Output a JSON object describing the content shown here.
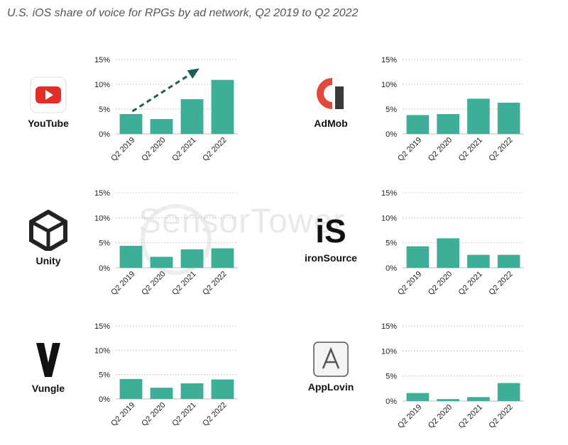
{
  "subtitle": "U.S. iOS share of voice for RPGs by ad network, Q2 2019 to Q2 2022",
  "watermark": "SensorTower",
  "colors": {
    "bar": "#3fae98",
    "grid": "#bdbdbd",
    "arrow": "#1f5d52"
  },
  "chart_data": [
    {
      "type": "bar",
      "network": "YouTube",
      "icon": "youtube-play-icon",
      "categories": [
        "Q2 2019",
        "Q2 2020",
        "Q2 2021",
        "Q2 2022"
      ],
      "values": [
        4.0,
        3.0,
        7.0,
        10.9
      ],
      "ylim": [
        0,
        15
      ],
      "yticks": [
        "0%",
        "5%",
        "10%",
        "15%"
      ],
      "trend_arrow": true
    },
    {
      "type": "bar",
      "network": "AdMob",
      "icon": "admob-icon",
      "categories": [
        "Q2 2019",
        "Q2 2020",
        "Q2 2021",
        "Q2 2022"
      ],
      "values": [
        3.8,
        4.0,
        7.1,
        6.3
      ],
      "ylim": [
        0,
        15
      ],
      "yticks": [
        "0%",
        "5%",
        "10%",
        "15%"
      ],
      "trend_arrow": false
    },
    {
      "type": "bar",
      "network": "Unity",
      "icon": "unity-icon",
      "categories": [
        "Q2 2019",
        "Q2 2020",
        "Q2 2021",
        "Q2 2022"
      ],
      "values": [
        4.4,
        2.2,
        3.7,
        3.9
      ],
      "ylim": [
        0,
        15
      ],
      "yticks": [
        "0%",
        "5%",
        "10%",
        "15%"
      ],
      "trend_arrow": false
    },
    {
      "type": "bar",
      "network": "ironSource",
      "icon": "ironsource-icon",
      "categories": [
        "Q2 2019",
        "Q2 2020",
        "Q2 2021",
        "Q2 2022"
      ],
      "values": [
        4.3,
        5.9,
        2.6,
        2.6
      ],
      "ylim": [
        0,
        15
      ],
      "yticks": [
        "0%",
        "5%",
        "10%",
        "15%"
      ],
      "trend_arrow": false
    },
    {
      "type": "bar",
      "network": "Vungle",
      "icon": "vungle-icon",
      "categories": [
        "Q2 2019",
        "Q2 2020",
        "Q2 2021",
        "Q2 2022"
      ],
      "values": [
        4.1,
        2.3,
        3.2,
        4.0
      ],
      "ylim": [
        0,
        15
      ],
      "yticks": [
        "0%",
        "5%",
        "10%",
        "15%"
      ],
      "trend_arrow": false
    },
    {
      "type": "bar",
      "network": "AppLovin",
      "icon": "applovin-icon",
      "categories": [
        "Q2 2019",
        "Q2 2020",
        "Q2 2021",
        "Q2 2022"
      ],
      "values": [
        1.6,
        0.4,
        0.8,
        3.6
      ],
      "ylim": [
        0,
        15
      ],
      "yticks": [
        "0%",
        "5%",
        "10%",
        "15%"
      ],
      "trend_arrow": false
    }
  ]
}
